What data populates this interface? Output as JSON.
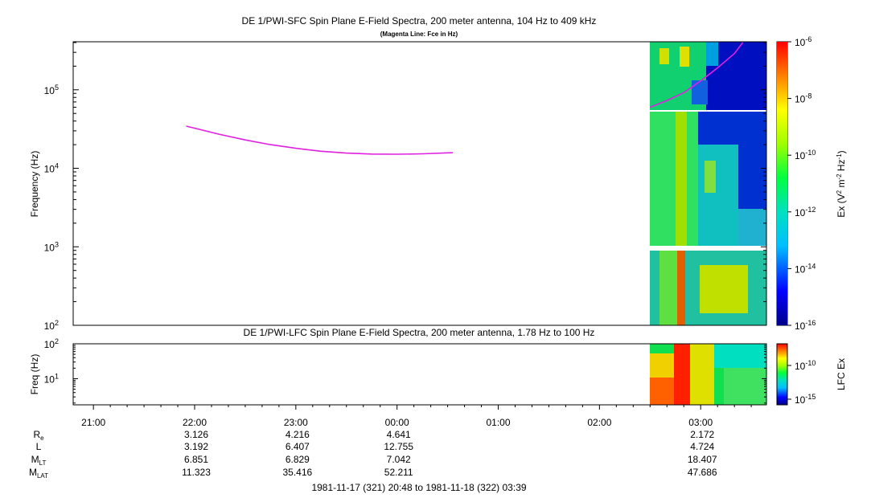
{
  "chart_data": [
    {
      "type": "heatmap",
      "title": "DE 1/PWI-SFC  Spin Plane E-Field Spectra, 200 meter antenna, 104 Hz to 409 kHz",
      "subtitle": "(Magenta Line: Fce in Hz)",
      "ylabel": "Frequency (Hz)",
      "yscale": "log",
      "ylim": [
        100,
        409000
      ],
      "yticks": [
        {
          "value": 100,
          "base": "10",
          "exp": "2"
        },
        {
          "value": 1000,
          "base": "10",
          "exp": "3"
        },
        {
          "value": 10000,
          "base": "10",
          "exp": "4"
        },
        {
          "value": 100000,
          "base": "10",
          "exp": "5"
        }
      ],
      "colorbar": {
        "label_parts": [
          "Ex (V",
          "2",
          " m",
          "-2",
          " Hz",
          "-1",
          ")"
        ],
        "scale": "log",
        "range": [
          1e-16,
          1e-06
        ],
        "ticks": [
          {
            "value": 1e-06,
            "base": "10",
            "exp": "-6"
          },
          {
            "value": 1e-08,
            "base": "10",
            "exp": "-8"
          },
          {
            "value": 1e-10,
            "base": "10",
            "exp": "-10"
          },
          {
            "value": 1e-12,
            "base": "10",
            "exp": "-12"
          },
          {
            "value": 1e-14,
            "base": "10",
            "exp": "-14"
          },
          {
            "value": 1e-16,
            "base": "10",
            "exp": "-16"
          }
        ]
      },
      "data_start_time": "02:30",
      "series": [
        {
          "kind": "line",
          "color": "#e020e0",
          "time": [
            "21:55",
            "22:15",
            "22:30",
            "22:45",
            "23:00",
            "23:15",
            "23:30",
            "23:45",
            "00:00",
            "00:15",
            "00:33"
          ],
          "values": [
            34500,
            27000,
            23000,
            20000,
            18000,
            16500,
            15600,
            15200,
            15100,
            15300,
            15800
          ]
        },
        {
          "kind": "line",
          "color": "#e020e0",
          "time": [
            "02:30",
            "02:40",
            "02:50",
            "03:00",
            "03:10",
            "03:20",
            "03:25"
          ],
          "values": [
            60000,
            73000,
            92000,
            130000,
            190000,
            290000,
            400000
          ]
        }
      ]
    },
    {
      "type": "heatmap",
      "title": "DE 1/PWI-LFC  Spin Plane E-Field Spectra, 200 meter antenna, 1.78 Hz to 100 Hz",
      "ylabel": "Freq (Hz)",
      "yscale": "log",
      "ylim": [
        1.78,
        100
      ],
      "yticks": [
        {
          "value": 10,
          "base": "10",
          "exp": "1"
        },
        {
          "value": 100,
          "base": "10",
          "exp": "2"
        }
      ],
      "colorbar": {
        "label": "LFC Ex",
        "ticks": [
          {
            "value": 1e-10,
            "base": "10",
            "exp": "-10"
          },
          {
            "value": 1e-15,
            "base": "10",
            "exp": "-15"
          }
        ]
      },
      "data_start_time": "02:30",
      "xticks": [
        "21:00",
        "22:00",
        "23:00",
        "00:00",
        "01:00",
        "02:00",
        "03:00"
      ],
      "time_range": "1981-11-17 (321) 20:48 to 1981-11-18 (322) 03:39",
      "ephemeris": {
        "columns": [
          "22:00",
          "23:00",
          "00:00",
          "03:00"
        ],
        "rows": [
          {
            "label": "R",
            "sub": "e",
            "values": [
              "3.126",
              "4.216",
              "4.641",
              "2.172"
            ]
          },
          {
            "label": "L",
            "sub": "",
            "values": [
              "3.192",
              "6.407",
              "12.755",
              "4.724"
            ]
          },
          {
            "label": "M",
            "sub": "LT",
            "values": [
              "6.851",
              "6.829",
              "7.042",
              "18.407"
            ]
          },
          {
            "label": "M",
            "sub": "LAT",
            "values": [
              "11.323",
              "35.416",
              "52.211",
              "47.686"
            ]
          }
        ]
      }
    }
  ]
}
